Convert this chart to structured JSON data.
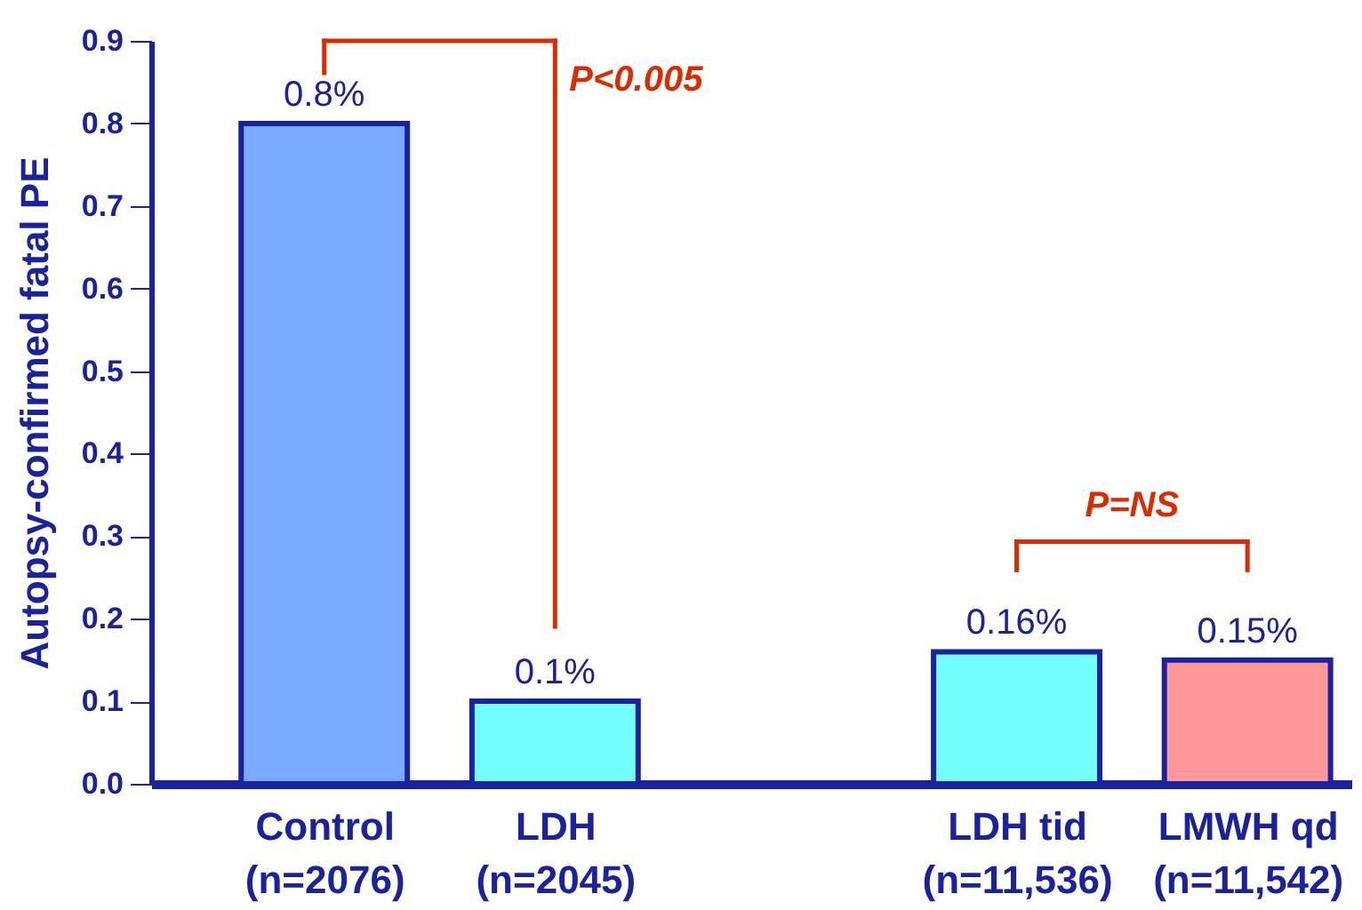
{
  "chart_data": {
    "type": "bar",
    "ylabel": "Autopsy-confirmed fatal PE",
    "categories": [
      "Control\n(n=2076)",
      "LDH\n(n=2045)",
      null,
      "LDH tid\n(n=11,536)",
      "LMWH qd\n(n=11,542)"
    ],
    "values": [
      0.8,
      0.1,
      null,
      0.16,
      0.15
    ],
    "colors": [
      "#78aaff",
      "#74ffff",
      "#ffffff",
      "#74ffff",
      "#ff9999"
    ],
    "value_labels": [
      "0.8%",
      "0.1%",
      null,
      "0.16%",
      "0.15%"
    ],
    "annotations": [
      "P<0.005",
      "P=NS"
    ],
    "ylim": [
      0,
      0.9
    ],
    "yticks": [
      {
        "value": 0,
        "label": "0.0"
      },
      0.1,
      0.2,
      0.3,
      0.4,
      0.5,
      0.6,
      0.7,
      0.8,
      0.9
    ],
    "grid": false
  }
}
